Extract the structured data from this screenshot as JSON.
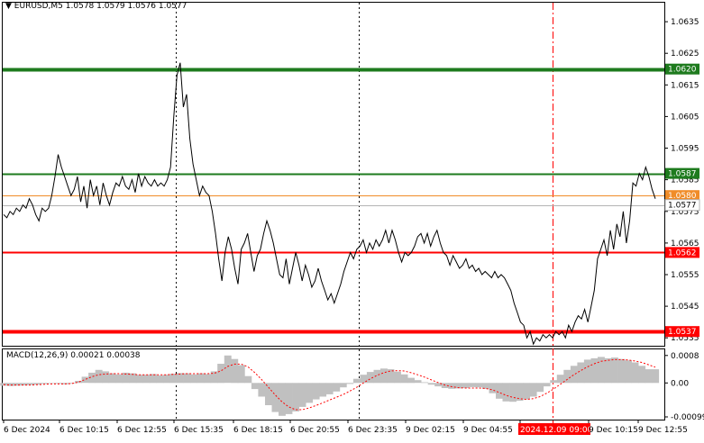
{
  "header": {
    "dropdown_icon": "triangle-down-icon",
    "title": "EURUSD,M5",
    "ohlc": "1.0578 1.0579 1.0576 1.0577"
  },
  "indicator": {
    "label": "MACD(12,26,9) 0.00021 0.00038"
  },
  "price_axis": {
    "ticks": [
      "1.0635",
      "1.0625",
      "1.0615",
      "1.0605",
      "1.0595",
      "1.0585",
      "1.0575",
      "1.0565",
      "1.0555",
      "1.0545",
      "1.0535"
    ],
    "range": [
      1.05325,
      1.0641
    ]
  },
  "macd_axis": {
    "ticks": [
      "0.0008",
      "0.00",
      "-0.00099"
    ],
    "range": [
      -0.00107,
      0.00098
    ]
  },
  "time_axis": {
    "labels": [
      "6 Dec 2024",
      "6 Dec 10:15",
      "6 Dec 12:55",
      "6 Dec 15:35",
      "6 Dec 18:15",
      "6 Dec 20:55",
      "6 Dec 23:35",
      "9 Dec 02:15",
      "9 Dec 04:55",
      "2024.12.09 09:00",
      "9 Dec 10:15",
      "9 Dec 12:55"
    ],
    "crosshair_label": "2024.12.09 09:00"
  },
  "levels": [
    {
      "price": 1.062,
      "label": "1.0620",
      "color": "#1e7b1e",
      "kind": "resistance-thick"
    },
    {
      "price": 1.0587,
      "label": "1.0587",
      "color": "#1e7b1e",
      "kind": "resistance"
    },
    {
      "price": 1.058,
      "label": "1.0580",
      "color": "#f08c28",
      "kind": "bid"
    },
    {
      "price": 1.0577,
      "label": "1.0577",
      "color": "#b4b4b4",
      "kind": "ask"
    },
    {
      "price": 1.0562,
      "label": "1.0562",
      "color": "#ff0000",
      "kind": "support"
    },
    {
      "price": 1.0537,
      "label": "1.0537",
      "color": "#ff0000",
      "kind": "support-thick"
    }
  ],
  "colors": {
    "price_line": "#000000",
    "histogram": "#c0c0c0",
    "signal_line": "#ff0000",
    "crosshair_red": "#ff0000",
    "grid": "#000000"
  },
  "chart_data": {
    "type": "line",
    "symbol": "EURUSD",
    "timeframe": "M5",
    "series": [
      {
        "values": [
          1.0574,
          1.0573,
          1.0575,
          1.0574,
          1.0576,
          1.0575,
          1.0577,
          1.0576,
          1.0579,
          1.0577,
          1.0574,
          1.0572,
          1.0576,
          1.0575,
          1.0576,
          1.058,
          1.0586,
          1.0593,
          1.0589,
          1.0586,
          1.0583,
          1.058,
          1.0582,
          1.0586,
          1.0578,
          1.0583,
          1.0576,
          1.0585,
          1.058,
          1.0583,
          1.0577,
          1.0584,
          1.058,
          1.0577,
          1.0581,
          1.0584,
          1.0583,
          1.0586,
          1.0583,
          1.0582,
          1.0585,
          1.0581,
          1.0587,
          1.0583,
          1.0586,
          1.0584,
          1.0583,
          1.0585,
          1.0583,
          1.0584,
          1.0583,
          1.0585,
          1.0589,
          1.0605,
          1.0618,
          1.0622,
          1.0608,
          1.0612,
          1.0598,
          1.059,
          1.0585,
          1.058,
          1.0583,
          1.0581,
          1.058,
          1.0575,
          1.0568,
          1.056,
          1.0553,
          1.0562,
          1.0567,
          1.0563,
          1.0557,
          1.0552,
          1.0563,
          1.0565,
          1.0568,
          1.0562,
          1.0556,
          1.0561,
          1.0563,
          1.0568,
          1.0572,
          1.0569,
          1.0565,
          1.056,
          1.0555,
          1.0554,
          1.056,
          1.0552,
          1.0557,
          1.0562,
          1.0558,
          1.0553,
          1.0558,
          1.0555,
          1.0551,
          1.0553,
          1.0557,
          1.0553,
          1.055,
          1.0547,
          1.0549,
          1.0546,
          1.0549,
          1.0552,
          1.0556,
          1.0559,
          1.0562,
          1.056,
          1.0563,
          1.0564,
          1.0566,
          1.0562,
          1.0565,
          1.0563,
          1.0566,
          1.0564,
          1.0566,
          1.0569,
          1.0565,
          1.0569,
          1.0566,
          1.0562,
          1.0559,
          1.0562,
          1.0561,
          1.0562,
          1.0564,
          1.0567,
          1.0568,
          1.0565,
          1.0568,
          1.0564,
          1.0567,
          1.0569,
          1.0565,
          1.0562,
          1.0561,
          1.0558,
          1.0561,
          1.0559,
          1.0557,
          1.0558,
          1.056,
          1.0557,
          1.0558,
          1.0556,
          1.0557,
          1.0555,
          1.0556,
          1.0555,
          1.0554,
          1.0556,
          1.0554,
          1.0555,
          1.0554,
          1.0552,
          1.055,
          1.0546,
          1.0543,
          1.054,
          1.0539,
          1.0535,
          1.0537,
          1.0533,
          1.0535,
          1.0534,
          1.0536,
          1.0535,
          1.0536,
          1.0535,
          1.0537,
          1.0536,
          1.0537,
          1.0535,
          1.0539,
          1.0537,
          1.054,
          1.0542,
          1.0541,
          1.0544,
          1.054,
          1.0545,
          1.055,
          1.056,
          1.0563,
          1.0566,
          1.0561,
          1.0569,
          1.0563,
          1.0571,
          1.0567,
          1.0575,
          1.0565,
          1.0572,
          1.0584,
          1.0583,
          1.0587,
          1.0585,
          1.0589,
          1.0586,
          1.0582,
          1.0579
        ]
      }
    ],
    "macd": {
      "histogram": [
        -8e-05,
        -9e-05,
        -8e-05,
        -7e-05,
        -6e-05,
        -5e-05,
        -3e-05,
        -1e-05,
        -2e-05,
        -4e-05,
        -2e-05,
        6e-05,
        0.00018,
        0.0003,
        0.00038,
        0.00034,
        0.00028,
        0.00025,
        0.0003,
        0.00028,
        0.00024,
        0.00024,
        0.00026,
        0.00022,
        0.00024,
        0.00027,
        0.00029,
        0.00028,
        0.00025,
        0.00028,
        0.00026,
        0.00034,
        0.00056,
        0.0008,
        0.0007,
        0.00052,
        0.0002,
        -0.00018,
        -0.0004,
        -0.00065,
        -0.00085,
        -0.00096,
        -0.00091,
        -0.00083,
        -0.0007,
        -0.00058,
        -0.00048,
        -0.0004,
        -0.00033,
        -0.00025,
        -0.00013,
        -3e-05,
        0.00012,
        0.00024,
        0.00032,
        0.00038,
        0.00042,
        0.0004,
        0.00033,
        0.00025,
        0.00015,
        8e-05,
        2e-05,
        -5e-05,
        -0.0001,
        -0.00015,
        -0.00017,
        -0.00016,
        -0.00015,
        -0.00012,
        -0.00013,
        -0.00017,
        -0.0003,
        -0.00046,
        -0.00054,
        -0.00055,
        -0.00052,
        -0.00048,
        -0.0004,
        -0.00026,
        -0.0001,
        8e-05,
        0.00024,
        0.00038,
        0.0005,
        0.0006,
        0.00068,
        0.00072,
        0.00076,
        0.00072,
        0.00074,
        0.0007,
        0.00066,
        0.0006,
        0.0005,
        0.0004,
        0.0004
      ],
      "signal": [
        -5e-05,
        -6e-05,
        -6e-05,
        -6e-05,
        -6e-05,
        -5e-05,
        -4e-05,
        -3e-05,
        -3e-05,
        -3e-05,
        -2e-05,
        2e-05,
        0.0001,
        0.00018,
        0.00024,
        0.00026,
        0.00027,
        0.00027,
        0.00026,
        0.00025,
        0.00024,
        0.00024,
        0.00024,
        0.00024,
        0.00024,
        0.00025,
        0.00026,
        0.00027,
        0.00027,
        0.00027,
        0.00027,
        0.00028,
        0.00035,
        0.00048,
        0.00055,
        0.00055,
        0.00047,
        0.0003,
        0.0001,
        -0.00012,
        -0.00035,
        -0.00055,
        -0.0007,
        -0.00078,
        -0.00078,
        -0.00073,
        -0.00066,
        -0.00058,
        -0.0005,
        -0.00042,
        -0.00034,
        -0.00024,
        -0.00013,
        0.0,
        0.00012,
        0.00022,
        0.0003,
        0.00035,
        0.00036,
        0.00035,
        0.0003,
        0.00024,
        0.00017,
        9e-05,
        1e-05,
        -6e-05,
        -0.00011,
        -0.00014,
        -0.00015,
        -0.00015,
        -0.00015,
        -0.00016,
        -0.0002,
        -0.00028,
        -0.00036,
        -0.00042,
        -0.00046,
        -0.00048,
        -0.00046,
        -0.0004,
        -0.0003,
        -0.00018,
        -4e-05,
        0.0001,
        0.00024,
        0.00036,
        0.00047,
        0.00056,
        0.00063,
        0.00066,
        0.00068,
        0.00068,
        0.00067,
        0.00064,
        0.0006,
        0.00053,
        0.00046
      ]
    }
  }
}
